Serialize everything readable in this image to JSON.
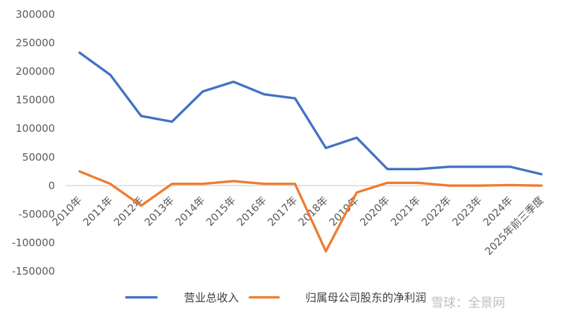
{
  "chart_data": {
    "type": "line",
    "categories": [
      "2010年",
      "2011年",
      "2012年",
      "2013年",
      "2014年",
      "2015年",
      "2016年",
      "2017年",
      "2018年",
      "2019年",
      "2020年",
      "2021年",
      "2022年",
      "2023年",
      "2024年",
      "2025年前三季度"
    ],
    "series": [
      {
        "name": "营业总收入",
        "color": "#4472C4",
        "values": [
          233000,
          194000,
          122000,
          112000,
          165000,
          182000,
          160000,
          153000,
          66000,
          84000,
          29000,
          29000,
          33000,
          33000,
          33000,
          20000
        ]
      },
      {
        "name": "归属母公司股东的净利润",
        "color": "#ED7D31",
        "values": [
          25000,
          3000,
          -35000,
          3000,
          3000,
          8000,
          3000,
          3000,
          -115000,
          -12000,
          5000,
          5000,
          0,
          0,
          1000,
          0
        ]
      }
    ],
    "title": "",
    "xlabel": "",
    "ylabel": "",
    "ylim": [
      -150000,
      300000
    ],
    "yticks": [
      300000,
      250000,
      200000,
      150000,
      100000,
      50000,
      0,
      -50000,
      -100000,
      -150000
    ],
    "grid": false,
    "legend": "bottom"
  },
  "watermark": "雪球：全景网"
}
